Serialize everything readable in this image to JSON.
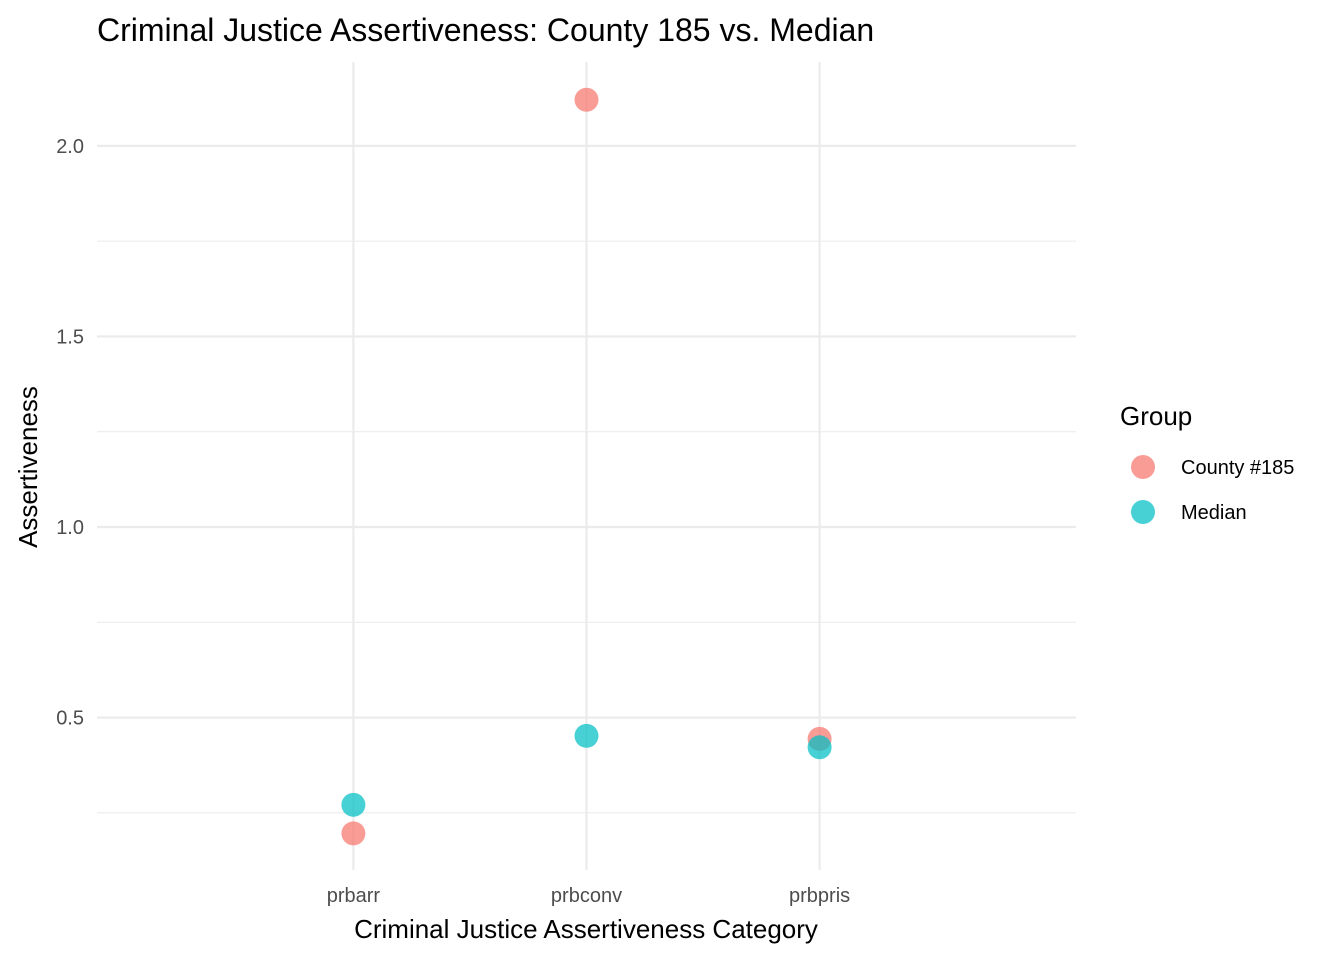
{
  "chart_data": {
    "type": "scatter",
    "title": "Criminal Justice Assertiveness: County 185 vs. Median",
    "xlabel": "Criminal Justice Assertiveness Category",
    "ylabel": "Assertiveness",
    "categories": [
      "prbarr",
      "prbconv",
      "prbpris"
    ],
    "ylim": [
      0.1,
      2.22
    ],
    "yticks": [
      0.5,
      1.0,
      1.5,
      2.0
    ],
    "ytick_labels": [
      "0.5",
      "1.0",
      "1.5",
      "2.0"
    ],
    "grid": true,
    "legend": {
      "title": "Group",
      "position": "right"
    },
    "series": [
      {
        "name": "County #185",
        "color": "#F8766D",
        "values": [
          0.196,
          2.121,
          0.444
        ]
      },
      {
        "name": "Median",
        "color": "#00BFC4",
        "values": [
          0.271,
          0.452,
          0.422
        ]
      }
    ]
  }
}
